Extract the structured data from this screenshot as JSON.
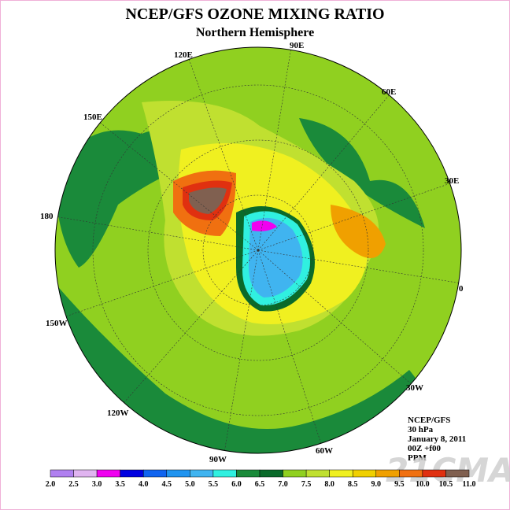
{
  "header": {
    "title": "NCEP/GFS OZONE MIXING RATIO",
    "subtitle": "Northern Hemisphere"
  },
  "longitude_labels": [
    "90E",
    "60E",
    "30E",
    "0",
    "30W",
    "60W",
    "90W",
    "120W",
    "150W",
    "180",
    "150E",
    "120E"
  ],
  "info": [
    "NCEP/GFS",
    "30 hPa",
    "January 8, 2011",
    "00Z +f00",
    "PPM"
  ],
  "colorbar": {
    "labels": [
      "2.0",
      "2.5",
      "3.0",
      "3.5",
      "4.0",
      "4.5",
      "5.0",
      "5.5",
      "6.0",
      "6.5",
      "7.0",
      "7.5",
      "8.0",
      "8.5",
      "9.0",
      "9.5",
      "10.0",
      "10.5",
      "11.0"
    ],
    "colors": [
      "#b080f0",
      "#e0b4f0",
      "#f000f0",
      "#0000e0",
      "#1064f0",
      "#2094f0",
      "#40b4f0",
      "#30f0e0",
      "#1a8a3a",
      "#0a6a2a",
      "#90d020",
      "#c0e030",
      "#f0f020",
      "#f0d000",
      "#f0a000",
      "#f07010",
      "#e03010",
      "#806050"
    ]
  },
  "watermark": "21CMA"
}
